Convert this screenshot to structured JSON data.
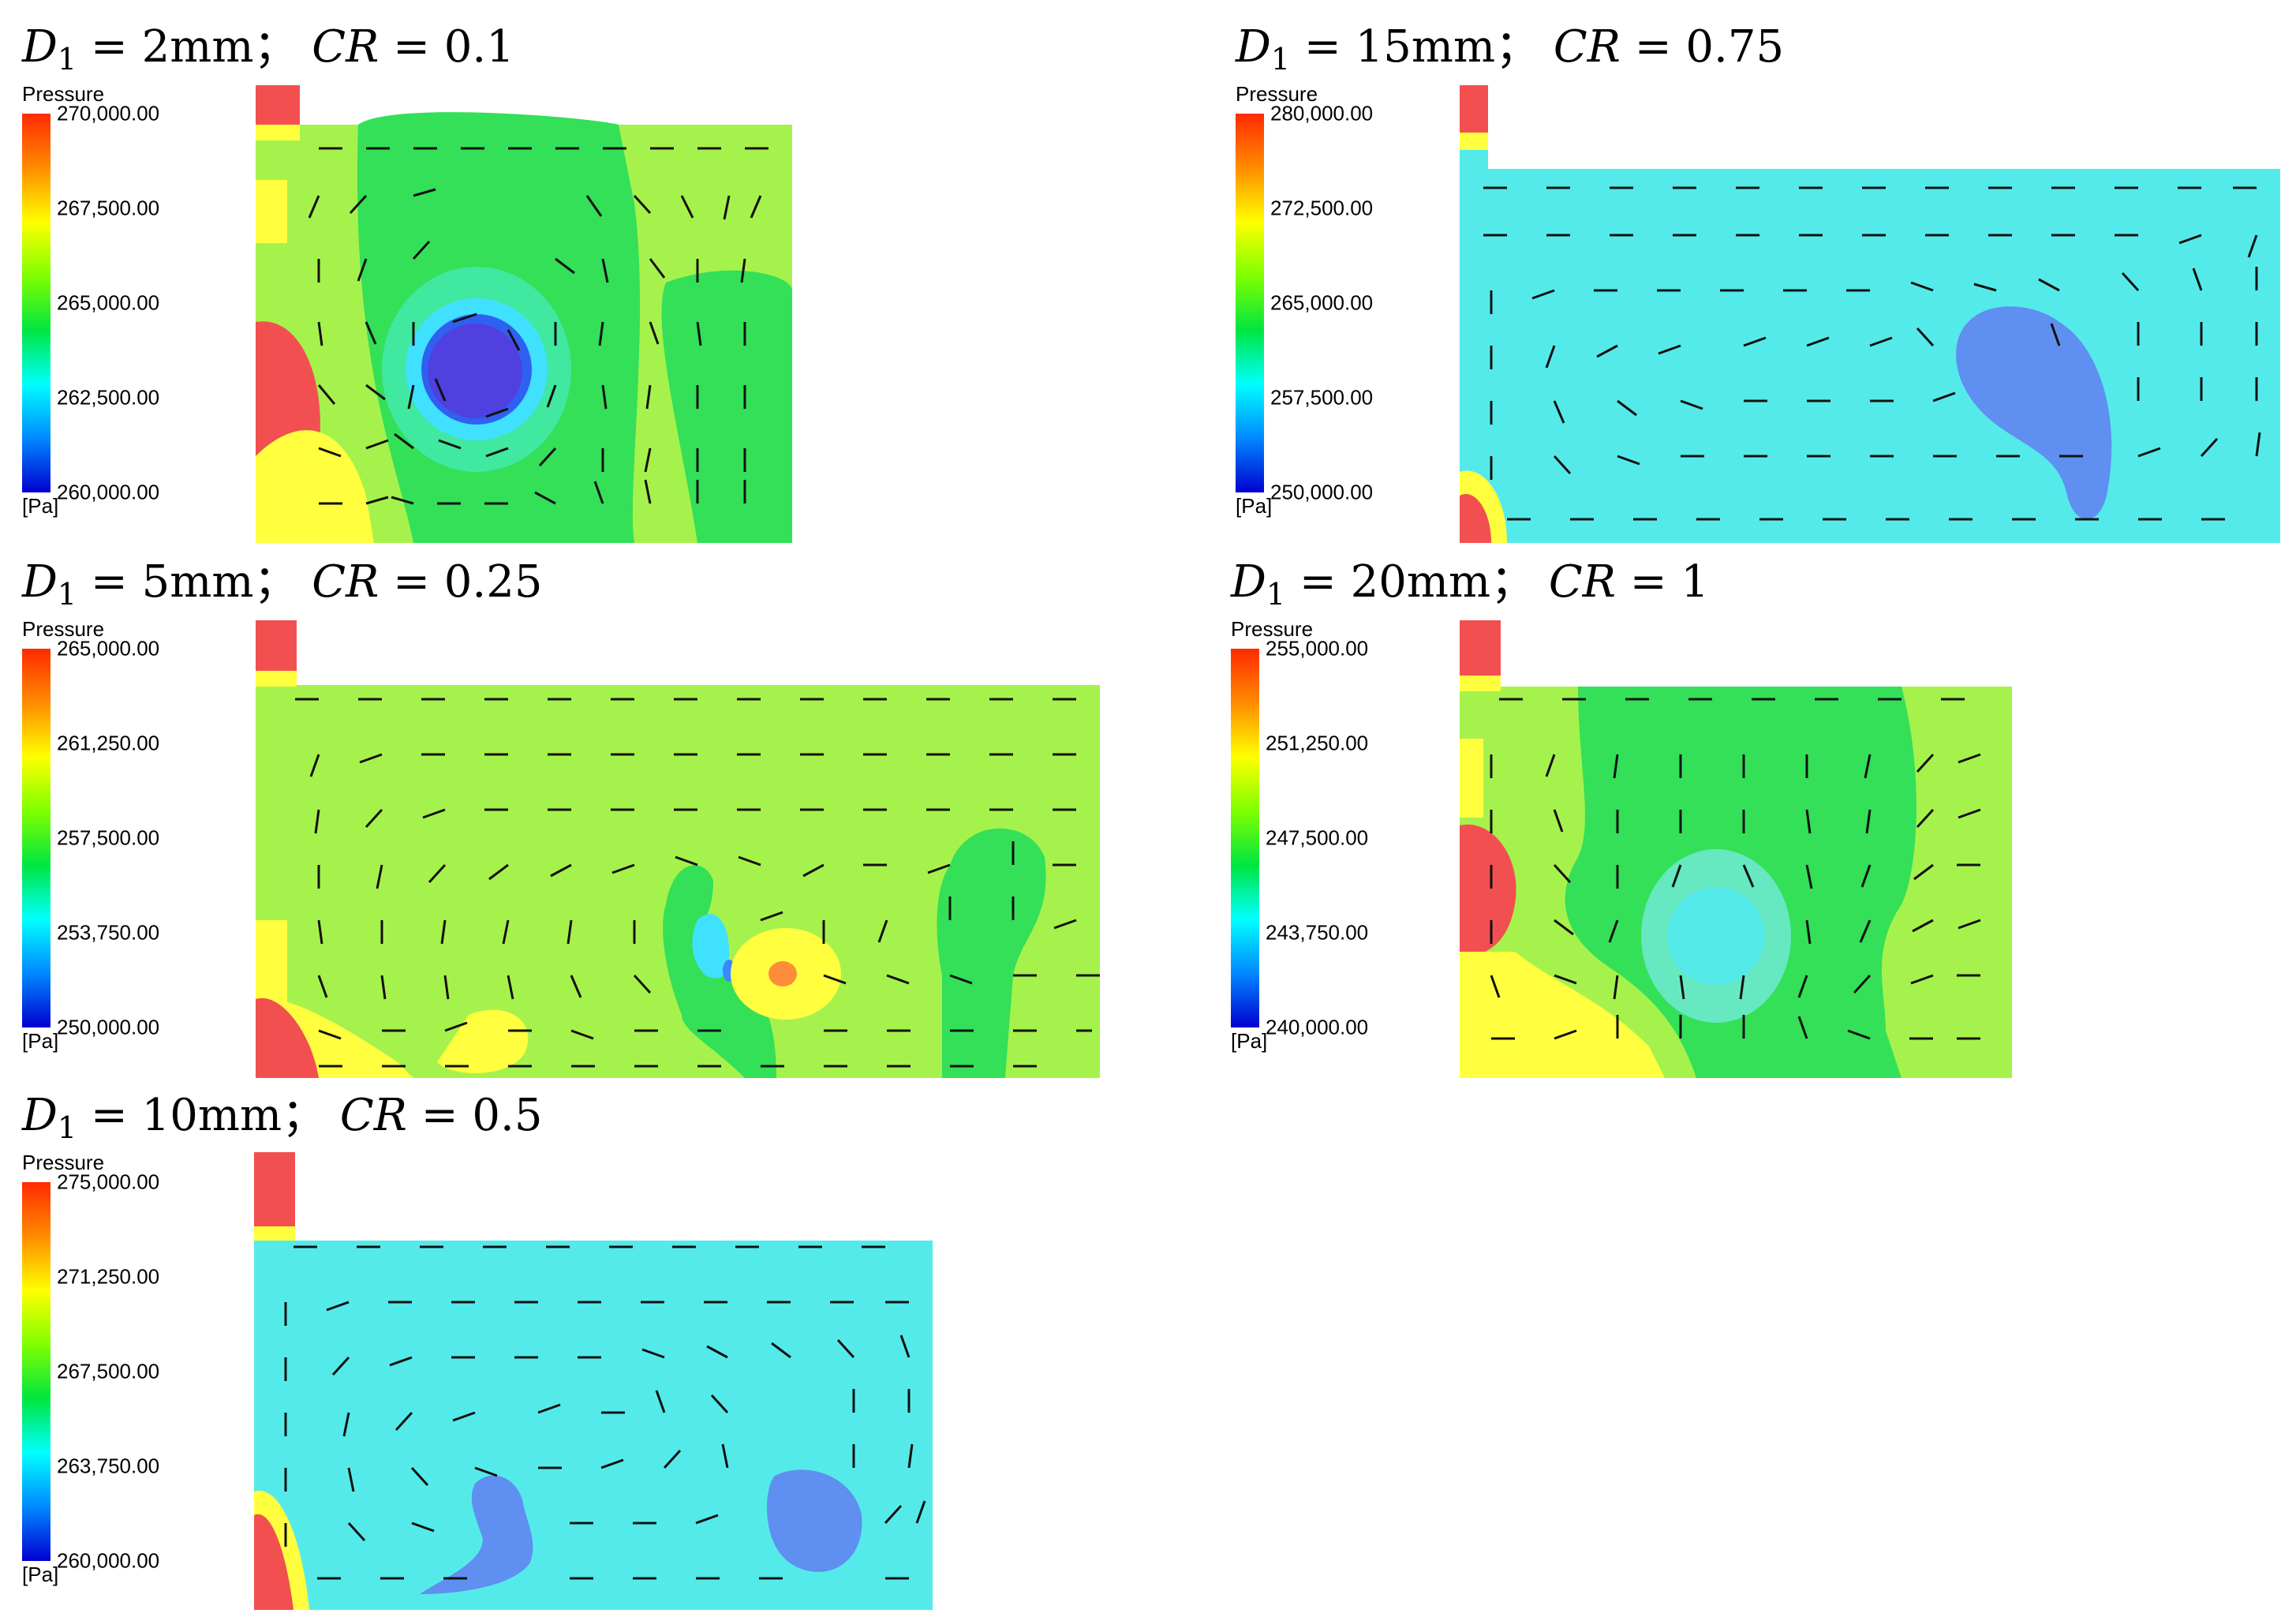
{
  "legend_title": "Pressure",
  "legend_unit": "[Pa]",
  "panels": [
    {
      "title": {
        "d1": "D",
        "sub": "1",
        "eq1": " = 2mm； ",
        "cr": "CR",
        "eq2": " = 0.1"
      },
      "ticks": [
        "270,000.00",
        "267,500.00",
        "265,000.00",
        "262,500.00",
        "260,000.00"
      ],
      "colors": {
        "background": "#a6f24c",
        "inlet": "#f25050"
      }
    },
    {
      "title": {
        "d1": "D",
        "sub": "1",
        "eq1": " = 15mm； ",
        "cr": "CR",
        "eq2": " = 0.75"
      },
      "ticks": [
        "280,000.00",
        "272,500.00",
        "265,000.00",
        "257,500.00",
        "250,000.00"
      ],
      "colors": {
        "background": "#55eaea",
        "inlet": "#f25050"
      }
    },
    {
      "title": {
        "d1": "D",
        "sub": "1",
        "eq1": " = 5mm； ",
        "cr": "CR",
        "eq2": " = 0.25"
      },
      "ticks": [
        "265,000.00",
        "261,250.00",
        "257,500.00",
        "253,750.00",
        "250,000.00"
      ],
      "colors": {
        "background": "#a6f24c",
        "inlet": "#f25050"
      }
    },
    {
      "title": {
        "d1": "D",
        "sub": "1",
        "eq1": " = 20mm； ",
        "cr": "CR",
        "eq2": " = 1"
      },
      "ticks": [
        "255,000.00",
        "251,250.00",
        "247,500.00",
        "243,750.00",
        "240,000.00"
      ],
      "colors": {
        "background": "#a6f24c",
        "inlet": "#f25050"
      }
    },
    {
      "title": {
        "d1": "D",
        "sub": "1",
        "eq1": " = 10mm； ",
        "cr": "CR",
        "eq2": " = 0.5"
      },
      "ticks": [
        "275,000.00",
        "271,250.00",
        "267,500.00",
        "263,750.00",
        "260,000.00"
      ],
      "colors": {
        "background": "#55eaea",
        "inlet": "#f25050"
      }
    }
  ]
}
